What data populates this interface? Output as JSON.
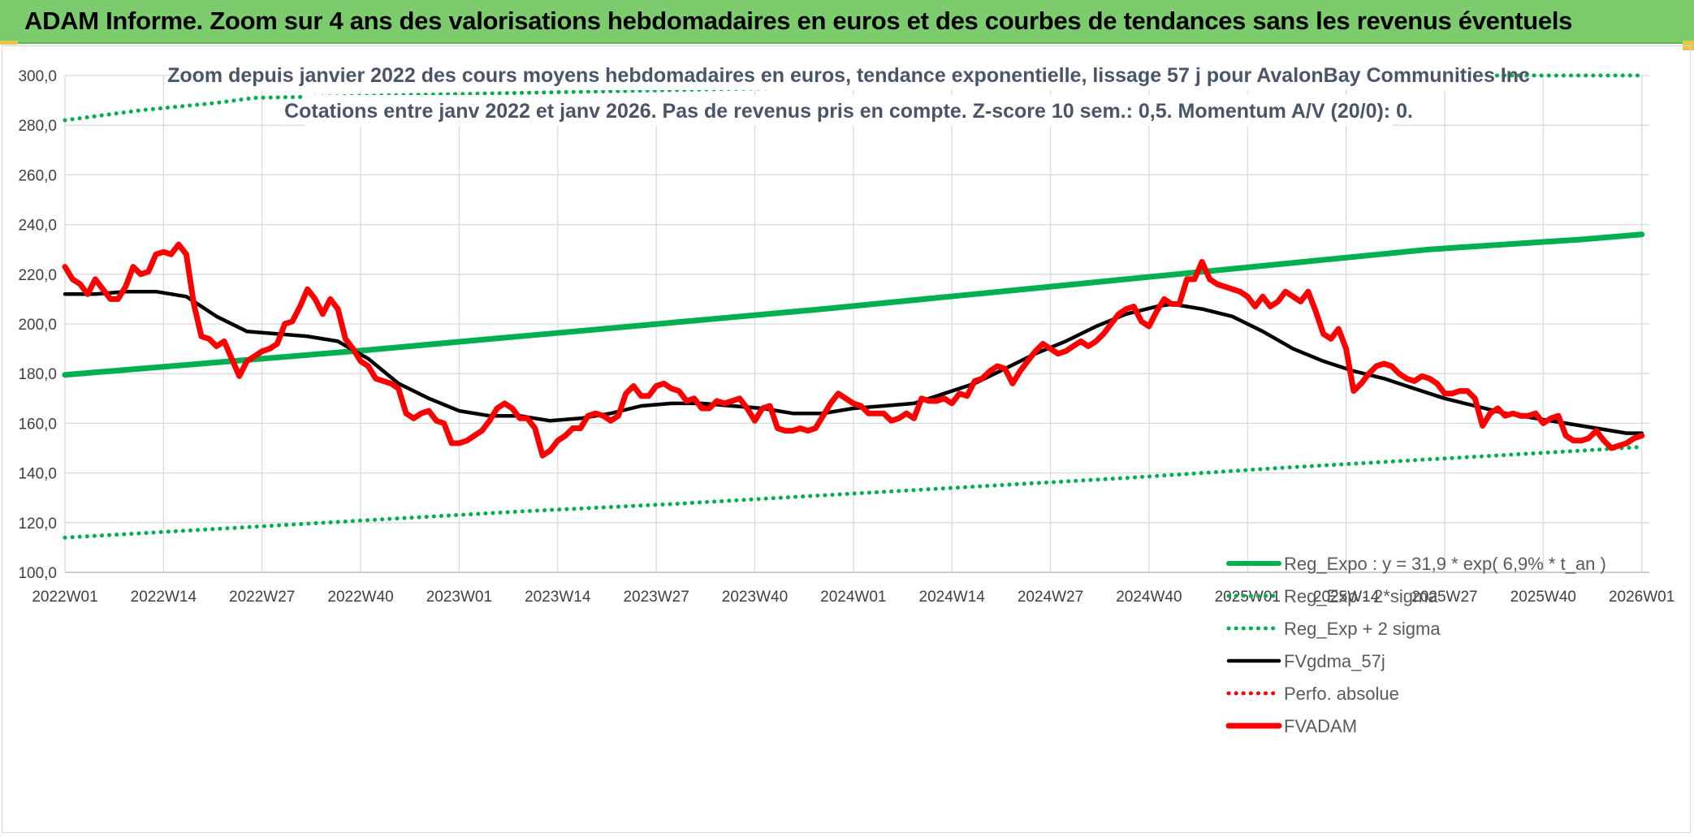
{
  "banner": {
    "title": "ADAM Informe. Zoom sur 4 ans des valorisations hebdomadaires en euros et des courbes de tendances sans les revenus éventuels"
  },
  "colors": {
    "banner_bg": "#7ccc6e",
    "reg_expo": "#00b050",
    "sigma": "#00b050",
    "fvgdma": "#000000",
    "perfo": "#ff0000",
    "fvadam": "#ff0000",
    "grid": "#d9d9d9"
  },
  "chart_data": {
    "type": "line",
    "title_lines": [
      "Zoom depuis janvier 2022 des cours moyens hebdomadaires en euros, tendance exponentielle, lissage 57 j pour AvalonBay Communities Inc",
      "Cotations entre janv 2022 et janv 2026. Pas de revenus pris en compte. Z-score 10 sem.: 0,5. Momentum A/V (20/0): 0."
    ],
    "ylim": [
      100,
      300
    ],
    "y_ticks": [
      100,
      120,
      140,
      160,
      180,
      200,
      220,
      240,
      260,
      280,
      300
    ],
    "y_tick_labels": [
      "100,0",
      "120,0",
      "140,0",
      "160,0",
      "180,0",
      "200,0",
      "220,0",
      "240,0",
      "260,0",
      "280,0",
      "300,0"
    ],
    "x_range_weeks": [
      0,
      209
    ],
    "x_ticks": [
      0,
      13,
      26,
      39,
      52,
      65,
      78,
      91,
      104,
      117,
      130,
      143,
      156,
      169,
      182,
      195,
      208
    ],
    "x_tick_labels": [
      "2022W01",
      "2022W14",
      "2022W27",
      "2022W40",
      "2023W01",
      "2023W14",
      "2023W27",
      "2023W40",
      "2024W01",
      "2024W14",
      "2024W27",
      "2024W40",
      "2025W01",
      "2025W14",
      "2025W27",
      "2025W40",
      "2026W01"
    ],
    "series": [
      {
        "name": "Reg_Expo : y = 31,9 * exp( 6,9% * t_an )",
        "style": "solid-thick",
        "x": [
          0,
          20,
          40,
          60,
          80,
          100,
          120,
          140,
          160,
          180,
          200,
          208
        ],
        "values": [
          179.5,
          184.5,
          189.5,
          195,
          200.5,
          206,
          212,
          218,
          224,
          230,
          234,
          236
        ]
      },
      {
        "name": "Reg_Exp - 2*sigma",
        "style": "dotted",
        "x": [
          0,
          20,
          40,
          60,
          80,
          100,
          120,
          140,
          160,
          180,
          200,
          208
        ],
        "values": [
          114,
          117.5,
          121,
          124.5,
          127.5,
          131,
          134.5,
          138,
          142,
          145.5,
          149,
          150.5
        ]
      },
      {
        "name": "Reg_Exp + 2 sigma",
        "style": "dotted",
        "x": [
          0,
          10,
          20,
          25,
          184,
          190,
          200,
          208
        ],
        "values": [
          282,
          286,
          289,
          291,
          300,
          300,
          300,
          300
        ]
      },
      {
        "name": "FVgdma_57j",
        "style": "solid",
        "x": [
          0,
          4,
          8,
          12,
          16,
          20,
          24,
          28,
          32,
          36,
          40,
          44,
          48,
          52,
          56,
          60,
          62,
          64,
          68,
          72,
          76,
          80,
          84,
          88,
          92,
          96,
          100,
          104,
          108,
          112,
          116,
          120,
          124,
          128,
          132,
          136,
          140,
          144,
          146,
          150,
          154,
          158,
          162,
          166,
          170,
          174,
          178,
          182,
          186,
          190,
          194,
          198,
          202,
          206,
          208
        ],
        "values": [
          212,
          212,
          213,
          213,
          211,
          203,
          197,
          196,
          195,
          193,
          186,
          176,
          170,
          165,
          163,
          163,
          162,
          161,
          162,
          164,
          167,
          168,
          168,
          167,
          166,
          164,
          164,
          166,
          167,
          168,
          172,
          176,
          182,
          188,
          193,
          199,
          204,
          207,
          208,
          206,
          203,
          197,
          190,
          185,
          181,
          178,
          174,
          170,
          167,
          164,
          162,
          160,
          158,
          156,
          156
        ]
      },
      {
        "name": "Perfo. absolue",
        "style": "dotted-red",
        "x": [],
        "values": []
      },
      {
        "name": "FVADAM",
        "style": "solid-thick",
        "x": [
          0,
          1,
          2,
          3,
          4,
          5,
          6,
          7,
          8,
          9,
          10,
          11,
          12,
          13,
          14,
          15,
          16,
          17,
          18,
          19,
          20,
          21,
          22,
          23,
          24,
          25,
          26,
          27,
          28,
          29,
          30,
          31,
          32,
          33,
          34,
          35,
          36,
          37,
          38,
          39,
          40,
          41,
          42,
          43,
          44,
          45,
          46,
          47,
          48,
          49,
          50,
          51,
          52,
          53,
          54,
          55,
          56,
          57,
          58,
          59,
          60,
          61,
          62,
          63,
          64,
          65,
          66,
          67,
          68,
          69,
          70,
          71,
          72,
          73,
          74,
          75,
          76,
          77,
          78,
          79,
          80,
          81,
          82,
          83,
          84,
          85,
          86,
          87,
          88,
          89,
          90,
          91,
          92,
          93,
          94,
          95,
          96,
          97,
          98,
          99,
          100,
          101,
          102,
          103,
          104,
          105,
          106,
          107,
          108,
          109,
          110,
          111,
          112,
          113,
          114,
          115,
          116,
          117,
          118,
          119,
          120,
          121,
          122,
          123,
          124,
          125,
          126,
          127,
          128,
          129,
          130,
          131,
          132,
          133,
          134,
          135,
          136,
          137,
          138,
          139,
          140,
          141,
          142,
          143,
          144,
          145,
          146,
          147,
          148,
          149,
          150,
          151,
          152,
          153,
          154,
          155,
          156,
          157,
          158,
          159,
          160,
          161,
          162,
          163,
          164,
          165,
          166,
          167,
          168,
          169,
          170,
          171,
          172,
          173,
          174,
          175,
          176,
          177,
          178,
          179,
          180,
          181,
          182,
          183,
          184,
          185,
          186,
          187,
          188,
          189,
          190,
          191,
          192,
          193,
          194,
          195,
          196,
          197,
          198,
          199,
          200,
          201,
          202,
          203,
          204,
          205,
          206,
          207,
          208
        ],
        "values": [
          223,
          218,
          216,
          212,
          218,
          214,
          210,
          210,
          215,
          223,
          220,
          221,
          228,
          229,
          228,
          232,
          228,
          208,
          195,
          194,
          191,
          193,
          186,
          179,
          185,
          187,
          189,
          190,
          192,
          200,
          201,
          207,
          214,
          210,
          204,
          210,
          206,
          194,
          190,
          185,
          183,
          178,
          177,
          176,
          174,
          164,
          162,
          164,
          165,
          161,
          160,
          152,
          152,
          153,
          155,
          157,
          161,
          166,
          168,
          166,
          162,
          162,
          158,
          147,
          149,
          153,
          155,
          158,
          158,
          163,
          164,
          163,
          161,
          163,
          172,
          175,
          171,
          171,
          175,
          176,
          174,
          173,
          169,
          170,
          166,
          166,
          169,
          168,
          169,
          170,
          166,
          161,
          166,
          167,
          158,
          157,
          157,
          158,
          157,
          158,
          163,
          168,
          172,
          170,
          168,
          167,
          164,
          164,
          164,
          161,
          162,
          164,
          162,
          170,
          169,
          169,
          170,
          168,
          172,
          171,
          177,
          178,
          181,
          183,
          182,
          176,
          181,
          185,
          189,
          192,
          190,
          188,
          189,
          191,
          193,
          191,
          193,
          196,
          200,
          204,
          206,
          207,
          201,
          199,
          205,
          210,
          208,
          208,
          218,
          218,
          225,
          218,
          216,
          215,
          214,
          213,
          211,
          207,
          211,
          207,
          209,
          213,
          211,
          209,
          213,
          205,
          196,
          194,
          198,
          190,
          173,
          176,
          180,
          183,
          184,
          183,
          180,
          178,
          177,
          179,
          178,
          176,
          172,
          172,
          173,
          173,
          170,
          159,
          164,
          166,
          163,
          164,
          163,
          163,
          164,
          160,
          162,
          163,
          155,
          153,
          153,
          154,
          157,
          153,
          150,
          151,
          152,
          154,
          155
        ]
      }
    ],
    "legend": [
      {
        "label": "Reg_Expo : y = 31,9 * exp( 6,9% * t_an )",
        "style": "solid-green"
      },
      {
        "label": "Reg_Exp - 2*sigma",
        "style": "dotted-green"
      },
      {
        "label": "Reg_Exp + 2 sigma",
        "style": "dotted-green"
      },
      {
        "label": "FVgdma_57j",
        "style": "solid-black"
      },
      {
        "label": "Perfo. absolue",
        "style": "dotted-red"
      },
      {
        "label": "FVADAM",
        "style": "solid-red"
      }
    ]
  }
}
